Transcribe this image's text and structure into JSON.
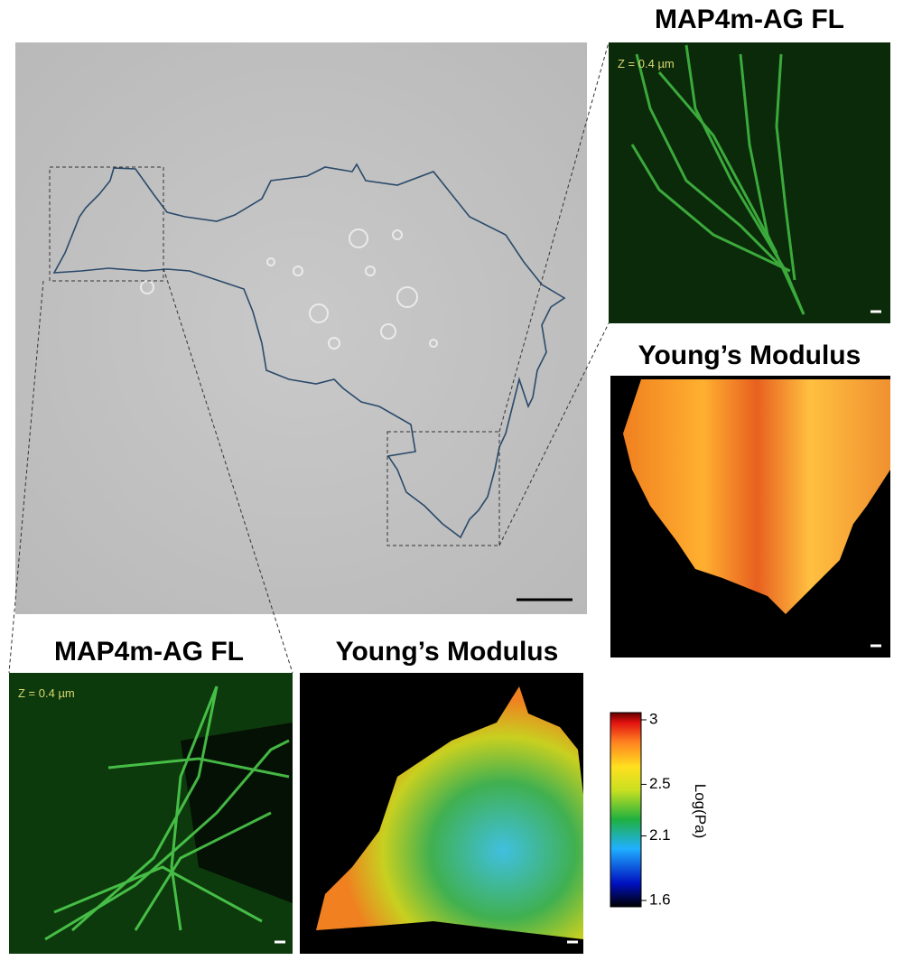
{
  "top_right": {
    "fluorescence": {
      "title": "MAP4m-AG FL",
      "z_label": "Z = 0.4 µm"
    },
    "modulus": {
      "title": "Young’s Modulus"
    }
  },
  "bottom": {
    "fluorescence": {
      "title": "MAP4m-AG FL",
      "z_label": "Z = 0.4 µm"
    },
    "modulus": {
      "title": "Young’s Modulus"
    }
  },
  "colorbar": {
    "label": "Log(Pa)",
    "ticks": [
      3,
      2.5,
      2.1,
      1.6
    ]
  }
}
